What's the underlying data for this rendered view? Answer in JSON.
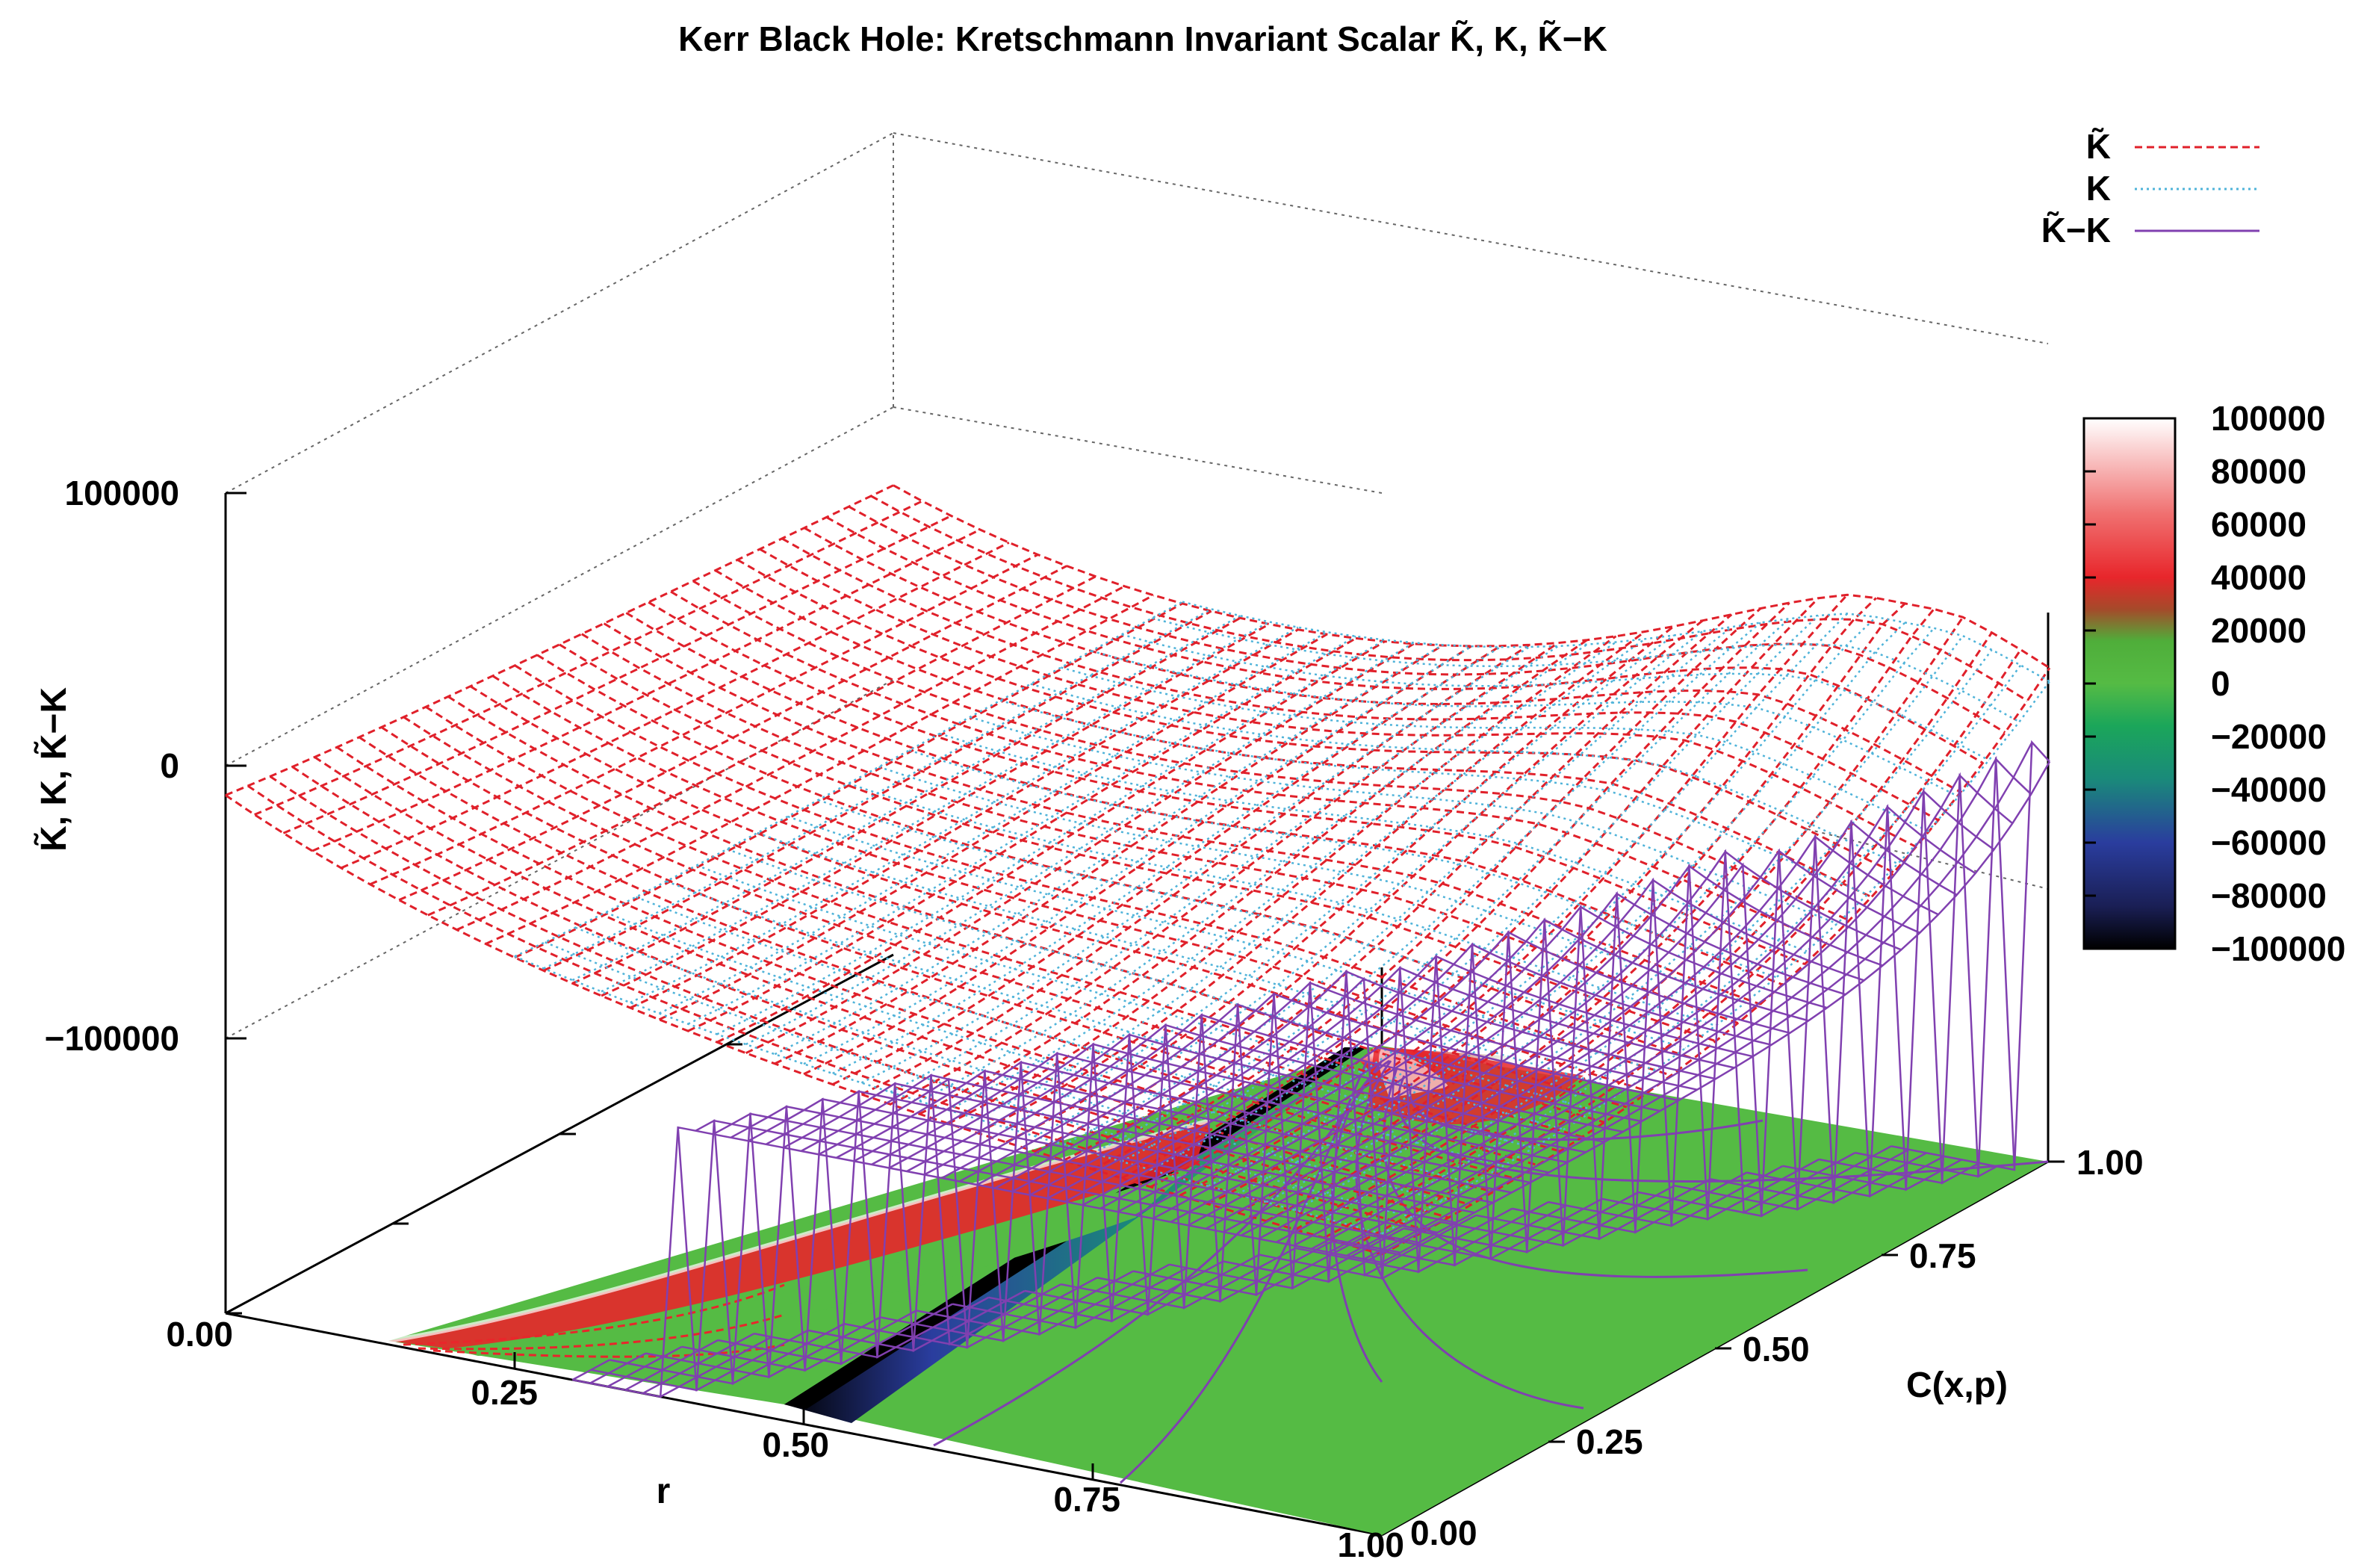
{
  "chart_data": {
    "type": "surface3d",
    "title": "Kerr Black Hole: Kretschmann Invariant Scalar K̃, K, K̃−K",
    "zlabel": "K̃, K, K̃−K",
    "xlabel": "r",
    "ylabel": "C(x,p)",
    "xlim": [
      0,
      1
    ],
    "ylim": [
      0,
      1
    ],
    "zlim": [
      -100000,
      100000
    ],
    "x_ticks": [
      "0.00",
      "0.25",
      "0.50",
      "0.75",
      "1.00"
    ],
    "y_ticks": [
      "0.00",
      "0.25",
      "0.50",
      "0.75",
      "1.00"
    ],
    "z_ticks": [
      "100000",
      "0",
      "−100000"
    ],
    "colorbar": {
      "range": [
        -100000,
        100000
      ],
      "ticks": [
        "100000",
        "80000",
        "60000",
        "40000",
        "20000",
        "0",
        "−20000",
        "−40000",
        "−60000",
        "−80000",
        "−100000"
      ],
      "palette": [
        "#000000",
        "#2a3d9e",
        "#1ba65a",
        "#55bb44",
        "#e8262b",
        "#ffffff"
      ]
    },
    "series": [
      {
        "name": "K̃",
        "style": "dashed",
        "color": "#e0202a"
      },
      {
        "name": "K",
        "style": "dotted",
        "color": "#4fb3d9"
      },
      {
        "name": "K̃−K",
        "style": "solid",
        "color": "#8040b0"
      }
    ],
    "grid": false,
    "legend_position": "top-right",
    "base_projection": "colormap with contour lines"
  }
}
